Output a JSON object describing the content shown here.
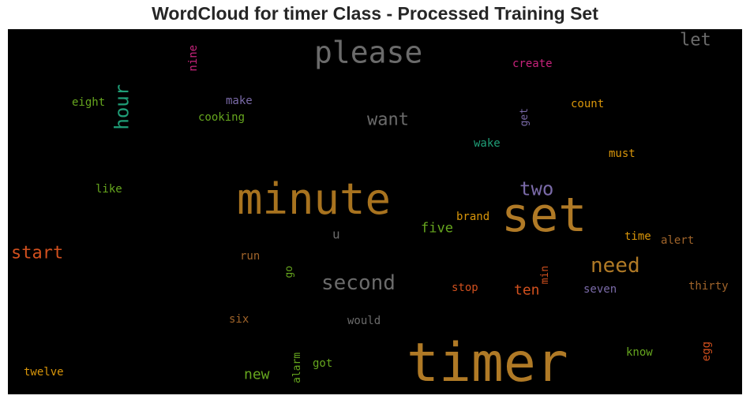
{
  "title": "WordCloud for timer Class - Processed Training Set",
  "words": [
    {
      "text": "timer",
      "color": "#b07a26",
      "vertical": false
    },
    {
      "text": "minute",
      "color": "#a8731f",
      "vertical": false
    },
    {
      "text": "set",
      "color": "#b07a26",
      "vertical": false
    },
    {
      "text": "please",
      "color": "#6b6b6b",
      "vertical": false
    },
    {
      "text": "second",
      "color": "#6b6b6b",
      "vertical": false
    },
    {
      "text": "need",
      "color": "#b07a26",
      "vertical": false
    },
    {
      "text": "start",
      "color": "#d1501e",
      "vertical": false
    },
    {
      "text": "two",
      "color": "#7a6aa8",
      "vertical": false
    },
    {
      "text": "want",
      "color": "#6b6b6b",
      "vertical": false
    },
    {
      "text": "hour",
      "color": "#1f9e77",
      "vertical": true
    },
    {
      "text": "let",
      "color": "#6b6b6b",
      "vertical": false
    },
    {
      "text": "five",
      "color": "#66a61e",
      "vertical": false
    },
    {
      "text": "ten",
      "color": "#d1501e",
      "vertical": false
    },
    {
      "text": "new",
      "color": "#66a61e",
      "vertical": false
    },
    {
      "text": "u",
      "color": "#6b6b6b",
      "vertical": false
    },
    {
      "text": "nine",
      "color": "#c8237c",
      "vertical": true
    },
    {
      "text": "create",
      "color": "#c8237c",
      "vertical": false
    },
    {
      "text": "eight",
      "color": "#66a61e",
      "vertical": false
    },
    {
      "text": "make",
      "color": "#7a6aa8",
      "vertical": false
    },
    {
      "text": "cooking",
      "color": "#66a61e",
      "vertical": false
    },
    {
      "text": "get",
      "color": "#7a6aa8",
      "vertical": true
    },
    {
      "text": "count",
      "color": "#d9960a",
      "vertical": false
    },
    {
      "text": "wake",
      "color": "#1f9e77",
      "vertical": false
    },
    {
      "text": "must",
      "color": "#d9960a",
      "vertical": false
    },
    {
      "text": "like",
      "color": "#66a61e",
      "vertical": false
    },
    {
      "text": "brand",
      "color": "#d9960a",
      "vertical": false
    },
    {
      "text": "time",
      "color": "#d9960a",
      "vertical": false
    },
    {
      "text": "alert",
      "color": "#a0642a",
      "vertical": false
    },
    {
      "text": "run",
      "color": "#a0642a",
      "vertical": false
    },
    {
      "text": "go",
      "color": "#66a61e",
      "vertical": true
    },
    {
      "text": "min",
      "color": "#d1501e",
      "vertical": true
    },
    {
      "text": "stop",
      "color": "#d1501e",
      "vertical": false
    },
    {
      "text": "seven",
      "color": "#7a6aa8",
      "vertical": false
    },
    {
      "text": "thirty",
      "color": "#a0642a",
      "vertical": false
    },
    {
      "text": "six",
      "color": "#a0642a",
      "vertical": false
    },
    {
      "text": "would",
      "color": "#6b6b6b",
      "vertical": false
    },
    {
      "text": "alarm",
      "color": "#66a61e",
      "vertical": true
    },
    {
      "text": "got",
      "color": "#66a61e",
      "vertical": false
    },
    {
      "text": "know",
      "color": "#66a61e",
      "vertical": false
    },
    {
      "text": "egg",
      "color": "#d1501e",
      "vertical": true
    },
    {
      "text": "twelve",
      "color": "#d9960a",
      "vertical": false
    }
  ]
}
